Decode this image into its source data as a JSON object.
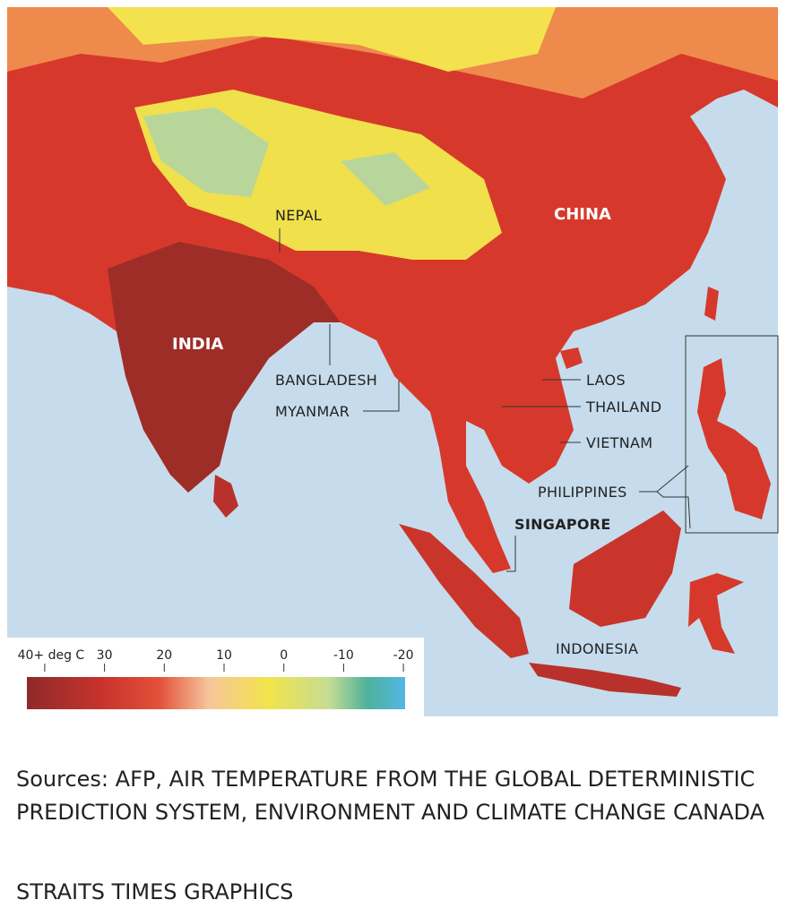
{
  "map": {
    "labels": [
      "NEPAL",
      "CHINA",
      "INDIA",
      "BANGLADESH",
      "MYANMAR",
      "LAOS",
      "THAILAND",
      "VIETNAM",
      "PHILIPPINES",
      "SINGAPORE",
      "INDONESIA"
    ]
  },
  "legend": {
    "ticks": [
      {
        "value": 40,
        "label": "40+ deg C"
      },
      30,
      20,
      10,
      0,
      -10,
      -20
    ]
  },
  "footer": {
    "sources": "Sources: AFP, AIR TEMPERATURE FROM THE GLOBAL DETERMINISTIC PREDICTION SYSTEM, ENVIRONMENT AND CLIMATE CHANGE CANADA",
    "credit": "STRAITS TIMES GRAPHICS"
  }
}
